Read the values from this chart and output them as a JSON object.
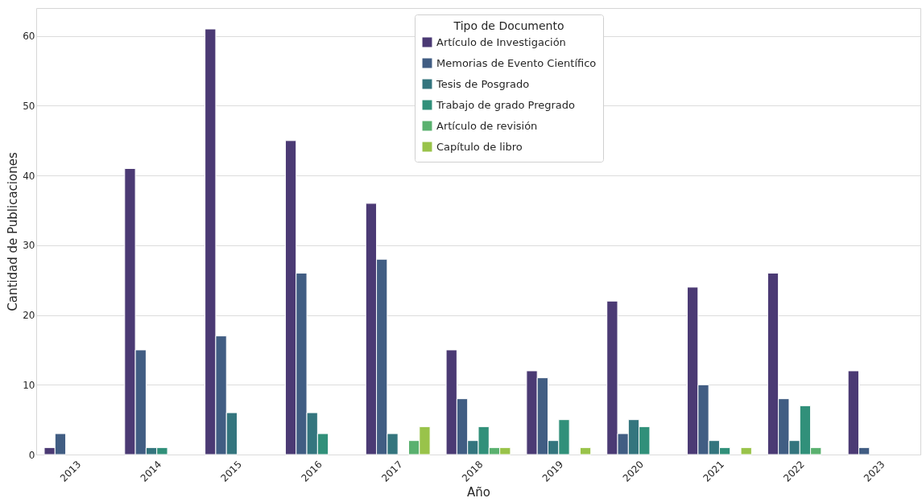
{
  "chart_data": {
    "type": "bar",
    "xlabel": "Año",
    "ylabel": "Cantidad de Publicaciones",
    "legend_title": "Tipo de Documento",
    "categories": [
      "2013",
      "2014",
      "2015",
      "2016",
      "2017",
      "2018",
      "2019",
      "2020",
      "2021",
      "2022",
      "2023"
    ],
    "series": [
      {
        "name": "Artículo de Investigación",
        "color": "#4b3a74",
        "values": [
          1,
          41,
          61,
          45,
          36,
          15,
          12,
          22,
          24,
          26,
          12
        ]
      },
      {
        "name": "Memorias de Evento Científico",
        "color": "#415d83",
        "values": [
          3,
          15,
          17,
          26,
          28,
          8,
          11,
          3,
          10,
          8,
          1
        ]
      },
      {
        "name": "Tesis de Posgrado",
        "color": "#34757e",
        "values": [
          null,
          1,
          6,
          6,
          3,
          2,
          2,
          5,
          2,
          2,
          null
        ]
      },
      {
        "name": "Trabajo de grado Pregrado",
        "color": "#31907a",
        "values": [
          null,
          1,
          null,
          3,
          null,
          4,
          5,
          4,
          1,
          7,
          null
        ]
      },
      {
        "name": "Artículo de revisión",
        "color": "#5ab16f",
        "values": [
          null,
          null,
          null,
          null,
          2,
          1,
          null,
          null,
          null,
          1,
          null
        ]
      },
      {
        "name": "Capítulo de libro",
        "color": "#99c34a",
        "values": [
          null,
          null,
          null,
          null,
          4,
          1,
          1,
          null,
          1,
          null,
          null
        ]
      }
    ],
    "ylim": [
      0,
      64
    ],
    "yticks": [
      0,
      10,
      20,
      30,
      40,
      50,
      60
    ],
    "grid": "y",
    "legend": "top"
  }
}
